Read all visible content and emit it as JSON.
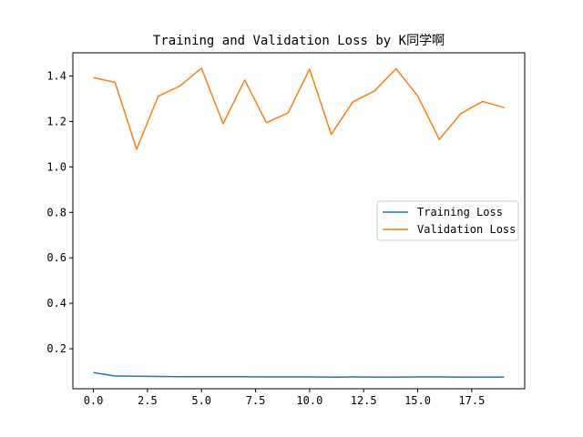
{
  "chart_data": {
    "type": "line",
    "title": "Training and Validation Loss by K同学啊",
    "xlabel": "",
    "ylabel": "",
    "xlim": [
      -0.95,
      19.95
    ],
    "ylim": [
      0.024,
      1.502
    ],
    "x": [
      0,
      1,
      2,
      3,
      4,
      5,
      6,
      7,
      8,
      9,
      10,
      11,
      12,
      13,
      14,
      15,
      16,
      17,
      18,
      19
    ],
    "x_ticks": [
      0.0,
      2.5,
      5.0,
      7.5,
      10.0,
      12.5,
      15.0,
      17.5
    ],
    "x_tick_labels": [
      "0.0",
      "2.5",
      "5.0",
      "7.5",
      "10.0",
      "12.5",
      "15.0",
      "17.5"
    ],
    "y_ticks": [
      0.2,
      0.4,
      0.6,
      0.8,
      1.0,
      1.2,
      1.4
    ],
    "y_tick_labels": [
      "0.2",
      "0.4",
      "0.6",
      "0.8",
      "1.0",
      "1.2",
      "1.4"
    ],
    "grid": false,
    "legend_position": "center-right",
    "series": [
      {
        "name": "Training Loss",
        "color": "#1f77b4",
        "values": [
          0.095,
          0.08,
          0.079,
          0.078,
          0.077,
          0.077,
          0.077,
          0.077,
          0.076,
          0.076,
          0.076,
          0.075,
          0.076,
          0.075,
          0.075,
          0.076,
          0.076,
          0.075,
          0.075,
          0.075
        ]
      },
      {
        "name": "Validation Loss",
        "color": "#ff7f0e",
        "values": [
          1.393,
          1.372,
          1.078,
          1.311,
          1.356,
          1.434,
          1.19,
          1.382,
          1.195,
          1.237,
          1.43,
          1.143,
          1.286,
          1.334,
          1.432,
          1.312,
          1.121,
          1.235,
          1.288,
          1.261
        ]
      }
    ]
  }
}
